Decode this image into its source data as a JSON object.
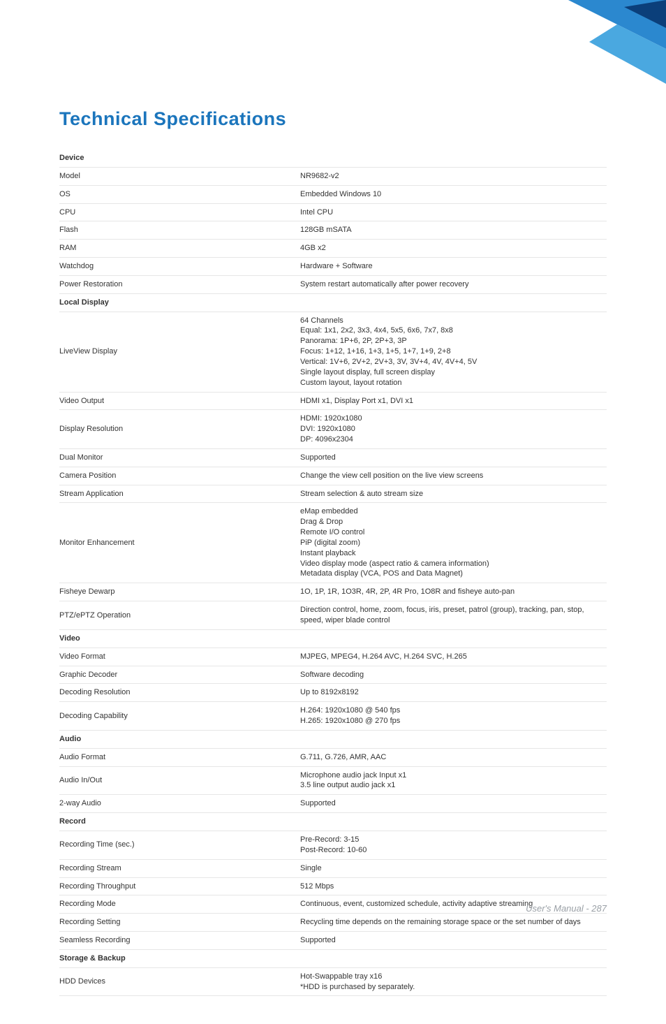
{
  "page": {
    "title": "Technical Specifications",
    "footer": "User's Manual - 287"
  },
  "corner": {
    "colors": {
      "light": "#4aa8e0",
      "mid": "#2b88cf",
      "dark": "#1b5fa6",
      "darkest": "#0b3f7a"
    }
  },
  "styles": {
    "heading_color": "#1b75bc",
    "section_color": "#1b75bc",
    "text_color": "#333333",
    "border_color": "#e6e6e6",
    "background": "#ffffff",
    "heading_fontsize": 27,
    "section_fontsize": 12,
    "body_fontsize": 11,
    "footer_color": "#9aa0a6",
    "footer_fontsize": 13,
    "label_col_width": 345
  },
  "sections": [
    {
      "title": "Device",
      "rows": [
        {
          "label": "Model",
          "value": "NR9682-v2"
        },
        {
          "label": "OS",
          "value": "Embedded Windows 10"
        },
        {
          "label": "CPU",
          "value": "Intel CPU"
        },
        {
          "label": "Flash",
          "value": "128GB mSATA"
        },
        {
          "label": "RAM",
          "value": "4GB x2"
        },
        {
          "label": "Watchdog",
          "value": "Hardware + Software"
        },
        {
          "label": "Power Restoration",
          "value": "System restart automatically after power recovery"
        }
      ]
    },
    {
      "title": "Local Display",
      "rows": [
        {
          "label": "LiveView Display",
          "value": "64 Channels\nEqual: 1x1, 2x2, 3x3, 4x4, 5x5, 6x6, 7x7, 8x8\nPanorama: 1P+6, 2P, 2P+3, 3P\nFocus: 1+12, 1+16, 1+3, 1+5, 1+7, 1+9, 2+8\nVertical: 1V+6, 2V+2, 2V+3, 3V, 3V+4, 4V, 4V+4, 5V\nSingle layout display, full screen display\nCustom layout, layout rotation"
        },
        {
          "label": "Video Output",
          "value": "HDMI x1, Display Port x1, DVI x1"
        },
        {
          "label": "Display Resolution",
          "value": "HDMI: 1920x1080\nDVI: 1920x1080\nDP: 4096x2304"
        },
        {
          "label": "Dual Monitor",
          "value": "Supported"
        },
        {
          "label": "Camera Position",
          "value": "Change the view cell position on the live view screens"
        },
        {
          "label": "Stream Application",
          "value": "Stream selection & auto stream size"
        },
        {
          "label": "Monitor Enhancement",
          "value": "eMap embedded\nDrag & Drop\nRemote I/O control\nPiP (digital zoom)\nInstant playback\nVideo display mode (aspect ratio & camera information)\nMetadata display (VCA, POS and Data Magnet)"
        },
        {
          "label": "Fisheye Dewarp",
          "value": "1O, 1P, 1R, 1O3R, 4R, 2P, 4R Pro, 1O8R and fisheye auto-pan"
        },
        {
          "label": "PTZ/ePTZ Operation",
          "value": "Direction control, home, zoom, focus, iris, preset, patrol (group), tracking, pan, stop, speed, wiper blade control"
        }
      ]
    },
    {
      "title": "Video",
      "rows": [
        {
          "label": "Video Format",
          "value": "MJPEG, MPEG4, H.264 AVC, H.264 SVC, H.265"
        },
        {
          "label": "Graphic Decoder",
          "value": "Software decoding"
        },
        {
          "label": "Decoding Resolution",
          "value": "Up to 8192x8192"
        },
        {
          "label": "Decoding Capability",
          "value": "H.264: 1920x1080 @ 540 fps\nH.265: 1920x1080 @ 270 fps"
        }
      ]
    },
    {
      "title": "Audio",
      "rows": [
        {
          "label": "Audio Format",
          "value": "G.711, G.726, AMR, AAC"
        },
        {
          "label": "Audio In/Out",
          "value": "Microphone audio jack Input x1\n3.5 line output audio jack x1"
        },
        {
          "label": "2-way Audio",
          "value": "Supported"
        }
      ]
    },
    {
      "title": "Record",
      "rows": [
        {
          "label": "Recording Time (sec.)",
          "value": "Pre-Record: 3-15\nPost-Record: 10-60"
        },
        {
          "label": "Recording Stream",
          "value": "Single"
        },
        {
          "label": "Recording Throughput",
          "value": "512 Mbps"
        },
        {
          "label": "Recording Mode",
          "value": "Continuous, event, customized schedule, activity adaptive streaming"
        },
        {
          "label": "Recording Setting",
          "value": "Recycling time depends on the remaining storage space or the set number of days"
        },
        {
          "label": "Seamless Recording",
          "value": "Supported"
        }
      ]
    },
    {
      "title": "Storage & Backup",
      "rows": [
        {
          "label": "HDD Devices",
          "value": "Hot-Swappable tray x16\n*HDD is purchased by separately."
        }
      ]
    }
  ]
}
